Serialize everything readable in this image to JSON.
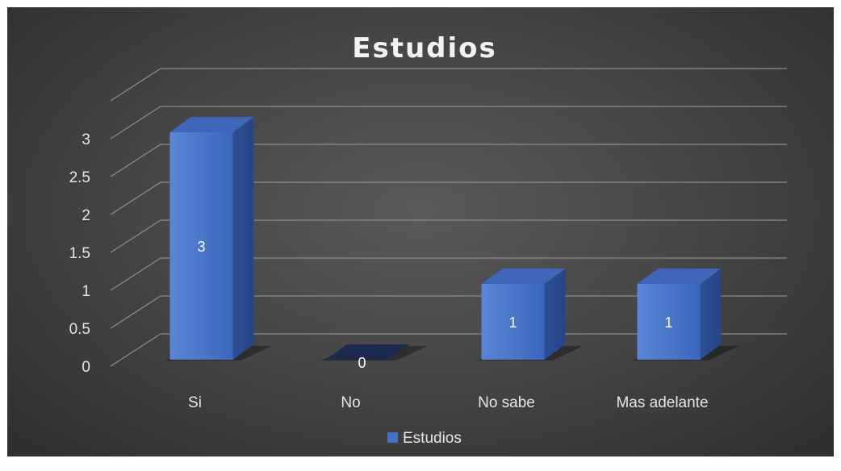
{
  "chart_data": {
    "type": "bar",
    "title": "Estudios",
    "categories": [
      "Si",
      "No",
      "No sabe",
      "Mas adelante"
    ],
    "series": [
      {
        "name": "Estudios",
        "values": [
          3,
          0,
          1,
          1
        ]
      }
    ],
    "data_labels": [
      "3",
      "0",
      "1",
      "1"
    ],
    "yticks": [
      "0",
      "0.5",
      "1",
      "1.5",
      "2",
      "2.5",
      "3"
    ],
    "ylim": [
      0,
      3.5
    ],
    "grid": true,
    "legend": "bottom",
    "style": "3d-column",
    "colors": {
      "bar_front": "#4472c4",
      "background": "#404040"
    }
  }
}
